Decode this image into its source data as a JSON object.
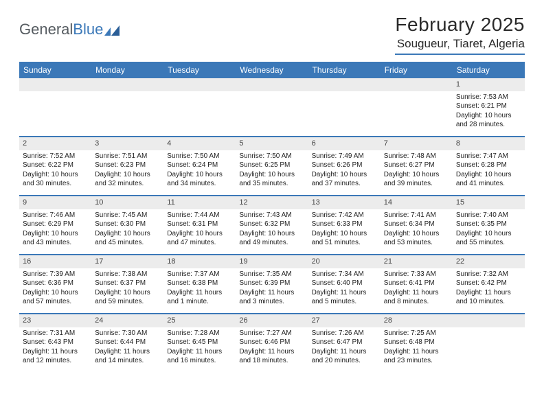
{
  "logo": {
    "part1": "General",
    "part2": "Blue"
  },
  "title": "February 2025",
  "location": "Sougueur, Tiaret, Algeria",
  "colors": {
    "accent": "#3b78b8",
    "header_text": "#ffffff",
    "daynum_bg": "#ececec",
    "text": "#222222",
    "logo_gray": "#555b60"
  },
  "days_of_week": [
    "Sunday",
    "Monday",
    "Tuesday",
    "Wednesday",
    "Thursday",
    "Friday",
    "Saturday"
  ],
  "weeks": [
    [
      {
        "n": "",
        "sr": "",
        "ss": "",
        "dl": ""
      },
      {
        "n": "",
        "sr": "",
        "ss": "",
        "dl": ""
      },
      {
        "n": "",
        "sr": "",
        "ss": "",
        "dl": ""
      },
      {
        "n": "",
        "sr": "",
        "ss": "",
        "dl": ""
      },
      {
        "n": "",
        "sr": "",
        "ss": "",
        "dl": ""
      },
      {
        "n": "",
        "sr": "",
        "ss": "",
        "dl": ""
      },
      {
        "n": "1",
        "sr": "Sunrise: 7:53 AM",
        "ss": "Sunset: 6:21 PM",
        "dl": "Daylight: 10 hours and 28 minutes."
      }
    ],
    [
      {
        "n": "2",
        "sr": "Sunrise: 7:52 AM",
        "ss": "Sunset: 6:22 PM",
        "dl": "Daylight: 10 hours and 30 minutes."
      },
      {
        "n": "3",
        "sr": "Sunrise: 7:51 AM",
        "ss": "Sunset: 6:23 PM",
        "dl": "Daylight: 10 hours and 32 minutes."
      },
      {
        "n": "4",
        "sr": "Sunrise: 7:50 AM",
        "ss": "Sunset: 6:24 PM",
        "dl": "Daylight: 10 hours and 34 minutes."
      },
      {
        "n": "5",
        "sr": "Sunrise: 7:50 AM",
        "ss": "Sunset: 6:25 PM",
        "dl": "Daylight: 10 hours and 35 minutes."
      },
      {
        "n": "6",
        "sr": "Sunrise: 7:49 AM",
        "ss": "Sunset: 6:26 PM",
        "dl": "Daylight: 10 hours and 37 minutes."
      },
      {
        "n": "7",
        "sr": "Sunrise: 7:48 AM",
        "ss": "Sunset: 6:27 PM",
        "dl": "Daylight: 10 hours and 39 minutes."
      },
      {
        "n": "8",
        "sr": "Sunrise: 7:47 AM",
        "ss": "Sunset: 6:28 PM",
        "dl": "Daylight: 10 hours and 41 minutes."
      }
    ],
    [
      {
        "n": "9",
        "sr": "Sunrise: 7:46 AM",
        "ss": "Sunset: 6:29 PM",
        "dl": "Daylight: 10 hours and 43 minutes."
      },
      {
        "n": "10",
        "sr": "Sunrise: 7:45 AM",
        "ss": "Sunset: 6:30 PM",
        "dl": "Daylight: 10 hours and 45 minutes."
      },
      {
        "n": "11",
        "sr": "Sunrise: 7:44 AM",
        "ss": "Sunset: 6:31 PM",
        "dl": "Daylight: 10 hours and 47 minutes."
      },
      {
        "n": "12",
        "sr": "Sunrise: 7:43 AM",
        "ss": "Sunset: 6:32 PM",
        "dl": "Daylight: 10 hours and 49 minutes."
      },
      {
        "n": "13",
        "sr": "Sunrise: 7:42 AM",
        "ss": "Sunset: 6:33 PM",
        "dl": "Daylight: 10 hours and 51 minutes."
      },
      {
        "n": "14",
        "sr": "Sunrise: 7:41 AM",
        "ss": "Sunset: 6:34 PM",
        "dl": "Daylight: 10 hours and 53 minutes."
      },
      {
        "n": "15",
        "sr": "Sunrise: 7:40 AM",
        "ss": "Sunset: 6:35 PM",
        "dl": "Daylight: 10 hours and 55 minutes."
      }
    ],
    [
      {
        "n": "16",
        "sr": "Sunrise: 7:39 AM",
        "ss": "Sunset: 6:36 PM",
        "dl": "Daylight: 10 hours and 57 minutes."
      },
      {
        "n": "17",
        "sr": "Sunrise: 7:38 AM",
        "ss": "Sunset: 6:37 PM",
        "dl": "Daylight: 10 hours and 59 minutes."
      },
      {
        "n": "18",
        "sr": "Sunrise: 7:37 AM",
        "ss": "Sunset: 6:38 PM",
        "dl": "Daylight: 11 hours and 1 minute."
      },
      {
        "n": "19",
        "sr": "Sunrise: 7:35 AM",
        "ss": "Sunset: 6:39 PM",
        "dl": "Daylight: 11 hours and 3 minutes."
      },
      {
        "n": "20",
        "sr": "Sunrise: 7:34 AM",
        "ss": "Sunset: 6:40 PM",
        "dl": "Daylight: 11 hours and 5 minutes."
      },
      {
        "n": "21",
        "sr": "Sunrise: 7:33 AM",
        "ss": "Sunset: 6:41 PM",
        "dl": "Daylight: 11 hours and 8 minutes."
      },
      {
        "n": "22",
        "sr": "Sunrise: 7:32 AM",
        "ss": "Sunset: 6:42 PM",
        "dl": "Daylight: 11 hours and 10 minutes."
      }
    ],
    [
      {
        "n": "23",
        "sr": "Sunrise: 7:31 AM",
        "ss": "Sunset: 6:43 PM",
        "dl": "Daylight: 11 hours and 12 minutes."
      },
      {
        "n": "24",
        "sr": "Sunrise: 7:30 AM",
        "ss": "Sunset: 6:44 PM",
        "dl": "Daylight: 11 hours and 14 minutes."
      },
      {
        "n": "25",
        "sr": "Sunrise: 7:28 AM",
        "ss": "Sunset: 6:45 PM",
        "dl": "Daylight: 11 hours and 16 minutes."
      },
      {
        "n": "26",
        "sr": "Sunrise: 7:27 AM",
        "ss": "Sunset: 6:46 PM",
        "dl": "Daylight: 11 hours and 18 minutes."
      },
      {
        "n": "27",
        "sr": "Sunrise: 7:26 AM",
        "ss": "Sunset: 6:47 PM",
        "dl": "Daylight: 11 hours and 20 minutes."
      },
      {
        "n": "28",
        "sr": "Sunrise: 7:25 AM",
        "ss": "Sunset: 6:48 PM",
        "dl": "Daylight: 11 hours and 23 minutes."
      },
      {
        "n": "",
        "sr": "",
        "ss": "",
        "dl": ""
      }
    ]
  ]
}
